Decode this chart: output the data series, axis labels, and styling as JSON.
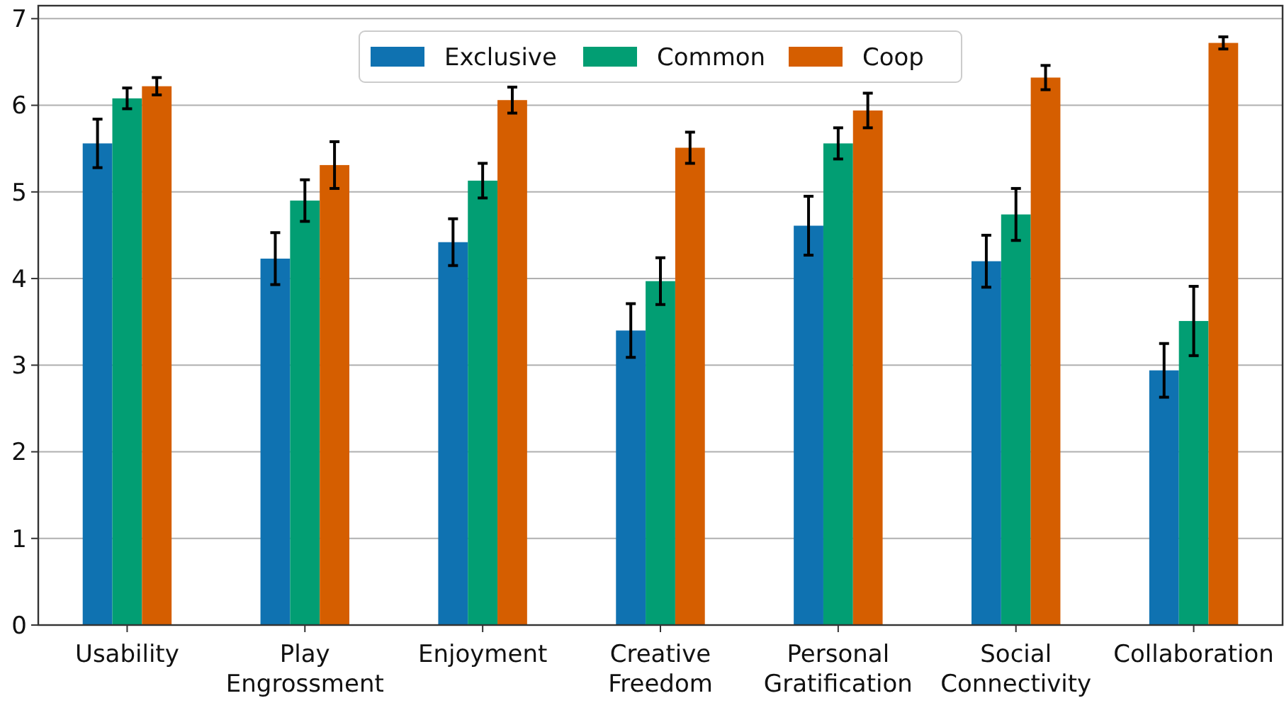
{
  "chart_data": {
    "type": "bar",
    "categories": [
      "Usability",
      "Play Engrossment",
      "Enjoyment",
      "Creative Freedom",
      "Personal Gratification",
      "Social Connectivity",
      "Collaboration"
    ],
    "series": [
      {
        "name": "Exclusive",
        "color": "#0f72b1",
        "values": [
          5.56,
          4.23,
          4.42,
          3.4,
          4.61,
          4.2,
          2.94
        ],
        "errors": [
          0.28,
          0.3,
          0.27,
          0.31,
          0.34,
          0.3,
          0.31
        ]
      },
      {
        "name": "Common",
        "color": "#029e73",
        "values": [
          6.08,
          4.9,
          5.13,
          3.97,
          5.56,
          4.74,
          3.51
        ],
        "errors": [
          0.12,
          0.24,
          0.2,
          0.27,
          0.18,
          0.3,
          0.4
        ]
      },
      {
        "name": "Coop",
        "color": "#d55e00",
        "values": [
          6.22,
          5.31,
          6.06,
          5.51,
          5.94,
          6.32,
          6.72
        ],
        "errors": [
          0.1,
          0.27,
          0.15,
          0.18,
          0.2,
          0.14,
          0.07
        ]
      }
    ],
    "ylim": [
      0,
      7.15
    ],
    "yticks": [
      0,
      1,
      2,
      3,
      4,
      5,
      6,
      7
    ],
    "grid": "y",
    "legend": "top"
  }
}
